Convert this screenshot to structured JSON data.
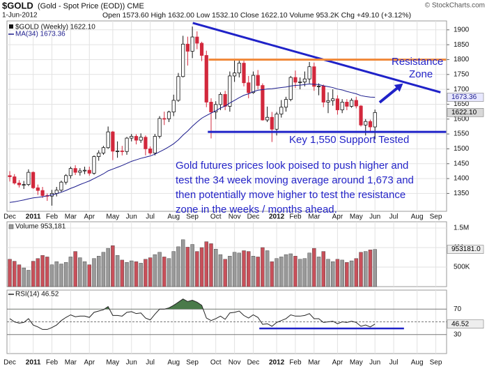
{
  "chart_data": {
    "type": "candlestick",
    "title": "$GOLD",
    "subtitle": "(Gold - Spot Price (EOD)) CME",
    "source": "© StockCharts.com",
    "date": "1-Jun-2012",
    "quote": "Open 1573.60  High 1632.00  Low 1532.10  Close 1622.10  Volume 953.2K  Chg +49.10 (+3.12%)",
    "legend": [
      "$GOLD (Weekly) 1622.10",
      "MA(34) 1673.36"
    ],
    "xlim": [
      -0.6,
      93.3
    ],
    "xticks": [
      {
        "value": 0,
        "label": "Dec"
      },
      {
        "value": 5,
        "label": "2011"
      },
      {
        "value": 9,
        "label": "Feb"
      },
      {
        "value": 13,
        "label": "Mar"
      },
      {
        "value": 17,
        "label": "Apr"
      },
      {
        "value": 22,
        "label": "May"
      },
      {
        "value": 26,
        "label": "Jun"
      },
      {
        "value": 30,
        "label": "Jul"
      },
      {
        "value": 35,
        "label": "Aug"
      },
      {
        "value": 39,
        "label": "Sep"
      },
      {
        "value": 44,
        "label": "Oct"
      },
      {
        "value": 48,
        "label": "Nov"
      },
      {
        "value": 52,
        "label": "Dec"
      },
      {
        "value": 57,
        "label": "2012"
      },
      {
        "value": 61,
        "label": "Feb"
      },
      {
        "value": 65,
        "label": "Mar"
      },
      {
        "value": 70,
        "label": "Apr"
      },
      {
        "value": 74,
        "label": "May"
      },
      {
        "value": 78,
        "label": "Jun"
      },
      {
        "value": 82,
        "label": "Jul"
      },
      {
        "value": 87,
        "label": "Aug"
      },
      {
        "value": 91,
        "label": "Sep"
      }
    ],
    "ylim": [
      1290,
      1930
    ],
    "yticks": [
      1350,
      1400,
      1450,
      1500,
      1550,
      1600,
      1650,
      1700,
      1750,
      1800,
      1850,
      1900
    ],
    "grid": true,
    "up_color": "#ffffff",
    "down_color": "#d2283c",
    "open": [
      1410,
      1406,
      1385,
      1379,
      1380,
      1421,
      1369,
      1360,
      1343,
      1341,
      1350,
      1361,
      1388,
      1410,
      1434,
      1421,
      1426,
      1428,
      1418,
      1474,
      1486,
      1504,
      1557,
      1492,
      1493,
      1491,
      1536,
      1542,
      1529,
      1539,
      1500,
      1486,
      1542,
      1602,
      1601,
      1624,
      1663,
      1743,
      1852,
      1828,
      1876,
      1855,
      1814,
      1657,
      1624,
      1649,
      1683,
      1643,
      1745,
      1755,
      1788,
      1722,
      1689,
      1747,
      1713,
      1597,
      1606,
      1566,
      1617,
      1640,
      1666,
      1740,
      1724,
      1725,
      1735,
      1776,
      1710,
      1711,
      1657,
      1662,
      1668,
      1631,
      1657,
      1643,
      1663,
      1644,
      1580,
      1592,
      1573.6
    ],
    "high": [
      1425,
      1415,
      1395,
      1392,
      1431,
      1424,
      1380,
      1372,
      1350,
      1362,
      1372,
      1393,
      1415,
      1440,
      1445,
      1435,
      1440,
      1440,
      1478,
      1495,
      1510,
      1575,
      1560,
      1525,
      1510,
      1540,
      1550,
      1549,
      1552,
      1545,
      1508,
      1550,
      1610,
      1625,
      1628,
      1682,
      1755,
      1880,
      1877,
      1911,
      1895,
      1860,
      1830,
      1670,
      1660,
      1690,
      1695,
      1760,
      1803,
      1803,
      1796,
      1745,
      1760,
      1765,
      1720,
      1642,
      1624,
      1624,
      1664,
      1675,
      1745,
      1763,
      1740,
      1760,
      1792,
      1790,
      1720,
      1716,
      1690,
      1700,
      1680,
      1667,
      1667,
      1670,
      1675,
      1647,
      1600,
      1598,
      1632
    ],
    "low": [
      1390,
      1380,
      1370,
      1365,
      1375,
      1365,
      1345,
      1335,
      1325,
      1309,
      1340,
      1355,
      1380,
      1400,
      1412,
      1410,
      1415,
      1410,
      1413,
      1460,
      1480,
      1500,
      1462,
      1470,
      1478,
      1480,
      1525,
      1515,
      1520,
      1478,
      1480,
      1478,
      1535,
      1580,
      1590,
      1610,
      1658,
      1740,
      1780,
      1805,
      1835,
      1795,
      1640,
      1535,
      1600,
      1630,
      1630,
      1625,
      1725,
      1740,
      1710,
      1670,
      1685,
      1700,
      1595,
      1590,
      1523,
      1545,
      1605,
      1625,
      1660,
      1705,
      1700,
      1710,
      1720,
      1695,
      1680,
      1640,
      1620,
      1645,
      1615,
      1620,
      1630,
      1638,
      1636,
      1575,
      1545,
      1556,
      1532.1
    ],
    "close": [
      1406,
      1385,
      1379,
      1380,
      1421,
      1369,
      1360,
      1343,
      1341,
      1350,
      1361,
      1388,
      1410,
      1434,
      1421,
      1426,
      1428,
      1418,
      1474,
      1486,
      1504,
      1557,
      1492,
      1493,
      1491,
      1536,
      1542,
      1529,
      1539,
      1500,
      1486,
      1542,
      1602,
      1601,
      1624,
      1663,
      1743,
      1852,
      1828,
      1876,
      1855,
      1814,
      1657,
      1624,
      1649,
      1683,
      1643,
      1745,
      1755,
      1788,
      1722,
      1689,
      1747,
      1713,
      1597,
      1606,
      1566,
      1617,
      1640,
      1666,
      1740,
      1724,
      1725,
      1735,
      1776,
      1710,
      1711,
      1657,
      1662,
      1668,
      1631,
      1657,
      1643,
      1663,
      1644,
      1580,
      1592,
      1573.6,
      1622.1
    ],
    "close_last_label": "1622.10",
    "ma": {
      "color": "#1a1a8c",
      "values": [
        1320,
        1322,
        1325,
        1328,
        1332,
        1335,
        1337,
        1339,
        1342,
        1345,
        1349,
        1354,
        1360,
        1367,
        1373,
        1380,
        1386,
        1392,
        1400,
        1408,
        1416,
        1426,
        1432,
        1438,
        1444,
        1451,
        1458,
        1463,
        1468,
        1472,
        1476,
        1482,
        1490,
        1498,
        1507,
        1517,
        1530,
        1546,
        1560,
        1576,
        1590,
        1603,
        1612,
        1620,
        1628,
        1637,
        1644,
        1654,
        1663,
        1672,
        1680,
        1685,
        1692,
        1697,
        1699,
        1701,
        1702,
        1704,
        1706,
        1708,
        1711,
        1713,
        1714,
        1716,
        1718,
        1717,
        1716,
        1712,
        1709,
        1706,
        1701,
        1698,
        1693,
        1689,
        1685,
        1679,
        1676,
        1674,
        1673.36
      ]
    },
    "volume": {
      "title": "Volume 953,181",
      "ylim": [
        0,
        1660000
      ],
      "yticks": [
        {
          "value": 500000,
          "label": "500K"
        },
        {
          "value": 1000000,
          "label": "1M"
        },
        {
          "value": 1500000,
          "label": "1.5M"
        }
      ],
      "last_label": "953181.0",
      "up_color": "#9a9a9a",
      "down_color": "#c8505a",
      "values": [
        700000,
        650000,
        560000,
        480000,
        420000,
        650000,
        720000,
        800000,
        760000,
        560000,
        640000,
        580000,
        620000,
        760000,
        900000,
        740000,
        640000,
        560000,
        720000,
        780000,
        880000,
        980000,
        1050000,
        800000,
        680000,
        620000,
        660000,
        640000,
        600000,
        700000,
        740000,
        820000,
        880000,
        760000,
        720000,
        900000,
        1020000,
        1200000,
        1010000,
        1080000,
        900000,
        1000000,
        1150000,
        1100000,
        960000,
        820000,
        700000,
        780000,
        880000,
        860000,
        920000,
        900000,
        780000,
        760000,
        1000000,
        920000,
        640000,
        720000,
        760000,
        820000,
        840000,
        780000,
        700000,
        720000,
        860000,
        980000,
        760000,
        900000,
        700000,
        640000,
        700000,
        680000,
        620000,
        660000,
        720000,
        880000,
        900000,
        940000,
        953181
      ]
    },
    "rsi": {
      "title": "RSI(14) 46.52",
      "ylim": [
        0,
        100
      ],
      "yticks": [
        30,
        70
      ],
      "midline": 50,
      "color": "#222222",
      "fill": "#4a7a4a",
      "values": [
        55,
        50,
        48,
        49,
        55,
        45,
        42,
        38,
        38,
        41,
        45,
        52,
        57,
        61,
        58,
        59,
        59,
        57,
        65,
        67,
        69,
        74,
        60,
        60,
        59,
        65,
        66,
        63,
        64,
        56,
        53,
        62,
        70,
        70,
        72,
        76,
        81,
        86,
        82,
        84,
        81,
        76,
        56,
        52,
        55,
        59,
        54,
        64,
        65,
        67,
        60,
        56,
        61,
        57,
        46,
        47,
        43,
        49,
        52,
        55,
        61,
        59,
        59,
        60,
        63,
        55,
        55,
        49,
        50,
        51,
        47,
        50,
        49,
        51,
        49,
        43,
        45,
        42,
        46.52
      ],
      "annotation": {
        "x": [
          53.3,
          84.2
        ],
        "y": [
          39.6,
          39.6
        ],
        "color": "#1f22c8"
      }
    },
    "annotations": {
      "lines": [
        {
          "x": [
            39.1,
            92
          ],
          "y": [
            1923,
            1690
          ],
          "color": "#1f22c8"
        },
        {
          "x": [
            42.5,
            93.2
          ],
          "y": [
            1800,
            1800
          ],
          "color": "#f08a3c"
        },
        {
          "x": [
            42.3,
            93.2
          ],
          "y": [
            1557,
            1557
          ],
          "color": "#1f22c8"
        }
      ],
      "arrow": {
        "x": [
          79,
          84
        ],
        "y": [
          1656,
          1720
        ],
        "color": "#1f22c8"
      },
      "resistance": [
        "Resistance",
        "Zone"
      ],
      "support": "Key 1,550 Support Tested",
      "comment": [
        "Gold futures prices look poised to push higher and",
        "test the 34 week moving average around 1,673 and",
        "then potentially move higher to test the resistance",
        "zone in the weeks / months ahead."
      ]
    }
  }
}
